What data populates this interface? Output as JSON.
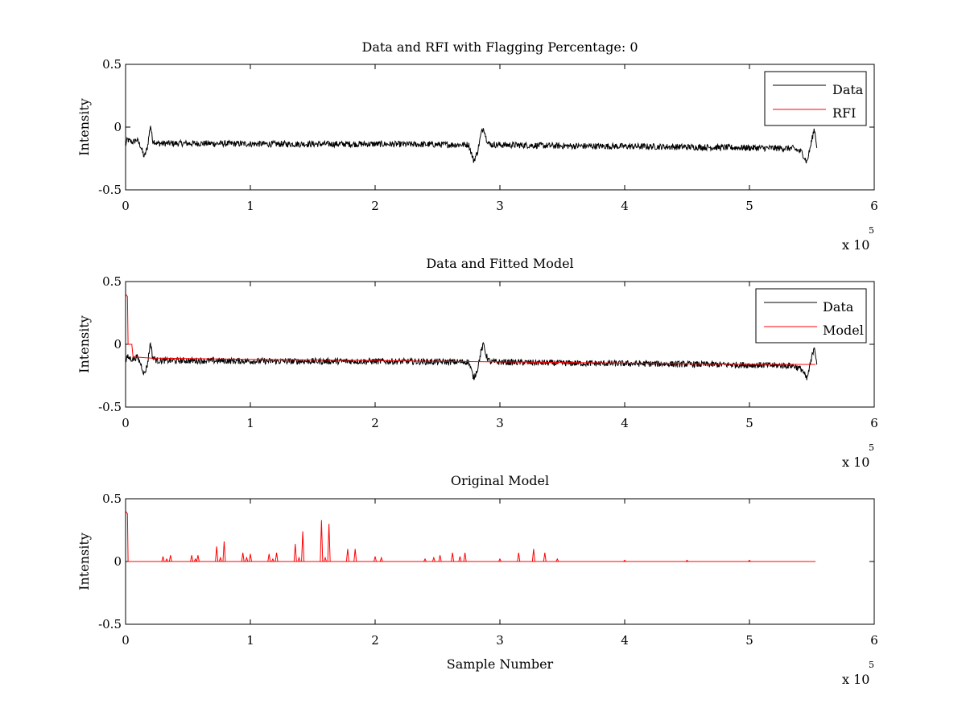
{
  "chart_data": [
    {
      "type": "line",
      "title": "Data and RFI with Flagging Percentage: 0",
      "xlabel": "",
      "ylabel": "Intensity",
      "xlim": [
        0,
        600000
      ],
      "ylim": [
        -0.5,
        0.5
      ],
      "x_ticks": [
        "0",
        "1",
        "2",
        "3",
        "4",
        "5",
        "6"
      ],
      "y_ticks": [
        "-0.5",
        "0",
        "0.5"
      ],
      "x_multiplier": {
        "base": "x 10",
        "exponent": "5"
      },
      "grid": false,
      "legend_position": "top-right",
      "series": [
        {
          "name": "Data",
          "color": "#000000",
          "noise_amplitude": 0.025,
          "points": [
            [
              0,
              -0.14
            ],
            [
              1500,
              -0.1
            ],
            [
              3000,
              -0.11
            ],
            [
              6000,
              -0.12
            ],
            [
              9000,
              -0.1
            ],
            [
              12000,
              -0.15
            ],
            [
              15000,
              -0.24
            ],
            [
              17500,
              -0.16
            ],
            [
              20000,
              0.02
            ],
            [
              21500,
              -0.1
            ],
            [
              25000,
              -0.13
            ],
            [
              60000,
              -0.13
            ],
            [
              120000,
              -0.135
            ],
            [
              200000,
              -0.135
            ],
            [
              260000,
              -0.14
            ],
            [
              275000,
              -0.14
            ],
            [
              279000,
              -0.27
            ],
            [
              282000,
              -0.2
            ],
            [
              285000,
              -0.05
            ],
            [
              287000,
              0.0
            ],
            [
              289000,
              -0.09
            ],
            [
              292000,
              -0.14
            ],
            [
              350000,
              -0.15
            ],
            [
              420000,
              -0.155
            ],
            [
              500000,
              -0.165
            ],
            [
              535000,
              -0.17
            ],
            [
              542000,
              -0.2
            ],
            [
              546000,
              -0.28
            ],
            [
              549000,
              -0.15
            ],
            [
              552000,
              -0.01
            ],
            [
              554000,
              -0.15
            ]
          ]
        },
        {
          "name": "RFI",
          "color": "#ff0000",
          "points": []
        }
      ]
    },
    {
      "type": "line",
      "title": "Data and Fitted Model",
      "xlabel": "",
      "ylabel": "Intensity",
      "xlim": [
        0,
        600000
      ],
      "ylim": [
        -0.5,
        0.5
      ],
      "x_ticks": [
        "0",
        "1",
        "2",
        "3",
        "4",
        "5",
        "6"
      ],
      "y_ticks": [
        "-0.5",
        "0",
        "0.5"
      ],
      "x_multiplier": {
        "base": "x 10",
        "exponent": "5"
      },
      "grid": false,
      "legend_position": "top-right",
      "series": [
        {
          "name": "Data",
          "color": "#000000",
          "noise_amplitude": 0.025,
          "points": [
            [
              0,
              -0.14
            ],
            [
              1500,
              -0.1
            ],
            [
              3000,
              -0.11
            ],
            [
              6000,
              -0.12
            ],
            [
              9000,
              -0.1
            ],
            [
              12000,
              -0.15
            ],
            [
              15000,
              -0.24
            ],
            [
              17500,
              -0.16
            ],
            [
              20000,
              0.02
            ],
            [
              21500,
              -0.1
            ],
            [
              25000,
              -0.13
            ],
            [
              60000,
              -0.13
            ],
            [
              120000,
              -0.135
            ],
            [
              200000,
              -0.135
            ],
            [
              260000,
              -0.14
            ],
            [
              275000,
              -0.14
            ],
            [
              279000,
              -0.27
            ],
            [
              282000,
              -0.2
            ],
            [
              285000,
              -0.05
            ],
            [
              287000,
              0.0
            ],
            [
              289000,
              -0.09
            ],
            [
              292000,
              -0.14
            ],
            [
              350000,
              -0.15
            ],
            [
              420000,
              -0.155
            ],
            [
              500000,
              -0.165
            ],
            [
              535000,
              -0.17
            ],
            [
              542000,
              -0.2
            ],
            [
              546000,
              -0.28
            ],
            [
              549000,
              -0.15
            ],
            [
              552000,
              -0.01
            ],
            [
              554000,
              -0.15
            ]
          ]
        },
        {
          "name": "Model",
          "color": "#ff0000",
          "points": [
            [
              0,
              0.4
            ],
            [
              1500,
              0.38
            ],
            [
              2000,
              0.0
            ],
            [
              5000,
              0.0
            ],
            [
              6000,
              -0.1
            ],
            [
              20000,
              -0.11
            ],
            [
              100000,
              -0.12
            ],
            [
              200000,
              -0.13
            ],
            [
              300000,
              -0.14
            ],
            [
              400000,
              -0.15
            ],
            [
              500000,
              -0.16
            ],
            [
              553000,
              -0.16
            ]
          ]
        }
      ]
    },
    {
      "type": "line",
      "title": "Original Model",
      "xlabel": "Sample Number",
      "ylabel": "Intensity",
      "xlim": [
        0,
        600000
      ],
      "ylim": [
        -0.5,
        0.5
      ],
      "x_ticks": [
        "0",
        "1",
        "2",
        "3",
        "4",
        "5",
        "6"
      ],
      "y_ticks": [
        "-0.5",
        "0",
        "0.5"
      ],
      "x_multiplier": {
        "base": "x 10",
        "exponent": "5"
      },
      "grid": false,
      "series": [
        {
          "name": "",
          "color": "#ff0000",
          "baseline": 0.0,
          "points": [
            [
              0,
              0.4
            ],
            [
              1500,
              0.38
            ],
            [
              2000,
              0.0
            ],
            [
              553000,
              0.0
            ]
          ],
          "spikes": [
            [
              30000,
              0.04
            ],
            [
              33000,
              0.02
            ],
            [
              36000,
              0.05
            ],
            [
              53000,
              0.05
            ],
            [
              56000,
              0.02
            ],
            [
              58000,
              0.05
            ],
            [
              73000,
              0.12
            ],
            [
              76000,
              0.03
            ],
            [
              79000,
              0.16
            ],
            [
              94000,
              0.07
            ],
            [
              97000,
              0.03
            ],
            [
              100000,
              0.06
            ],
            [
              115000,
              0.06
            ],
            [
              118000,
              0.02
            ],
            [
              121000,
              0.07
            ],
            [
              136000,
              0.14
            ],
            [
              139000,
              0.03
            ],
            [
              142000,
              0.24
            ],
            [
              157000,
              0.33
            ],
            [
              160000,
              0.03
            ],
            [
              163000,
              0.3
            ],
            [
              178000,
              0.1
            ],
            [
              184000,
              0.1
            ],
            [
              200000,
              0.04
            ],
            [
              205000,
              0.03
            ],
            [
              240000,
              0.02
            ],
            [
              247000,
              0.03
            ],
            [
              252000,
              0.05
            ],
            [
              262000,
              0.07
            ],
            [
              268000,
              0.04
            ],
            [
              272000,
              0.07
            ],
            [
              300000,
              0.02
            ],
            [
              315000,
              0.07
            ],
            [
              327000,
              0.1
            ],
            [
              336000,
              0.07
            ],
            [
              346000,
              0.02
            ],
            [
              400000,
              0.01
            ],
            [
              450000,
              0.01
            ],
            [
              500000,
              0.01
            ]
          ]
        }
      ]
    }
  ]
}
